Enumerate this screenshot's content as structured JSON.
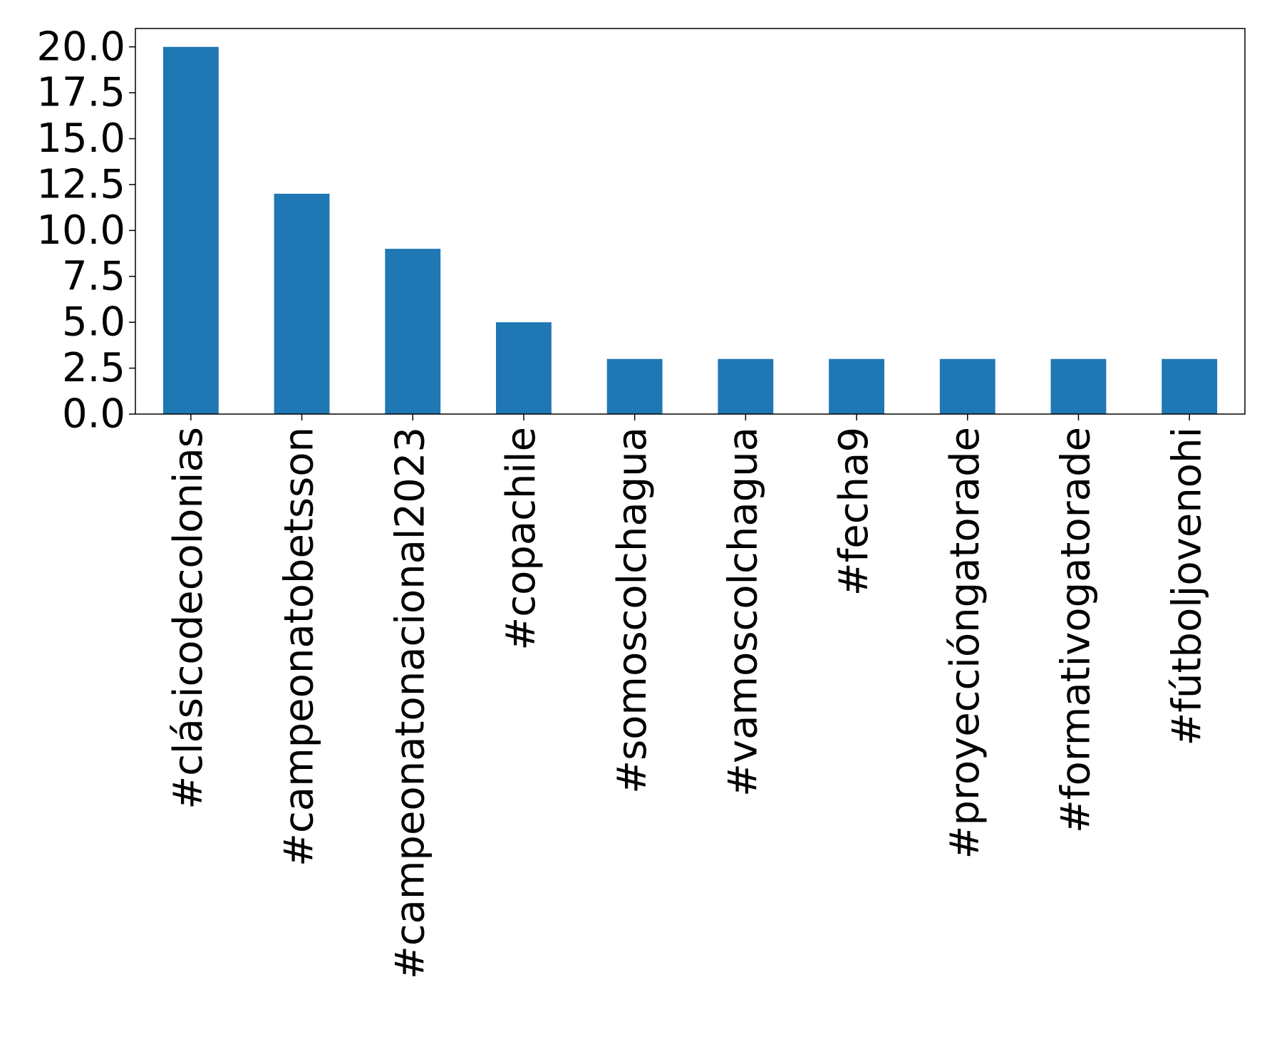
{
  "chart_data": {
    "type": "bar",
    "title": "",
    "xlabel": "",
    "ylabel": "",
    "categories": [
      "#clásicodecolonias",
      "#campeonatobetsson",
      "#campeonatonacional2023",
      "#copachile",
      "#somoscolchagua",
      "#vamoscolchagua",
      "#fecha9",
      "#proyeccióngatorade",
      "#formativogatorade",
      "#fútboljovenohi"
    ],
    "values": [
      20,
      12,
      9,
      5,
      3,
      3,
      3,
      3,
      3,
      3
    ],
    "ylim": [
      0,
      21
    ],
    "yticks": [
      0,
      2.5,
      5,
      7.5,
      10,
      12.5,
      15,
      17.5,
      20
    ],
    "ytick_labels": [
      "0.0",
      "2.5",
      "5.0",
      "7.5",
      "10.0",
      "12.5",
      "15.0",
      "17.5",
      "20.0"
    ],
    "grid": false,
    "legend": "none",
    "bar_color": "#1f77b4",
    "axis_color": "#000000",
    "x_tick_rotation": "vertical"
  }
}
